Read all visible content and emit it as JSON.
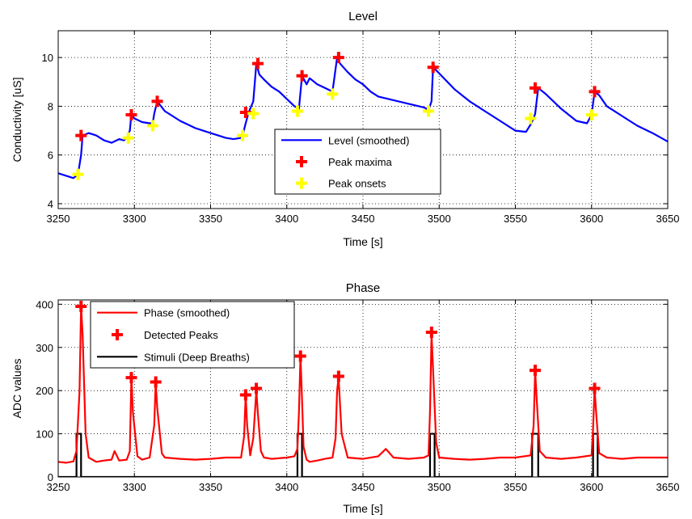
{
  "chart_data": [
    {
      "type": "line",
      "title": "Level",
      "xlabel": "Time [s]",
      "ylabel": "Conductivity [uS]",
      "xlim": [
        3250,
        3650
      ],
      "ylim": [
        3.8,
        11.1
      ],
      "xticks": [
        3250,
        3300,
        3350,
        3400,
        3450,
        3500,
        3550,
        3600,
        3650
      ],
      "yticks": [
        4,
        6,
        8,
        10
      ],
      "grid": true,
      "legend": {
        "placement": "center-right-bottom",
        "entries": [
          "Level (smoothed)",
          "Peak maxima",
          "Peak onsets"
        ]
      },
      "series": [
        {
          "name": "Level (smoothed)",
          "kind": "line",
          "color": "#0000ff",
          "x": [
            3250,
            3255,
            3260,
            3263,
            3265,
            3266,
            3270,
            3275,
            3280,
            3285,
            3290,
            3293,
            3295,
            3297,
            3298,
            3300,
            3305,
            3310,
            3312,
            3313,
            3315,
            3320,
            3325,
            3330,
            3340,
            3350,
            3360,
            3365,
            3370,
            3371,
            3373,
            3375,
            3378,
            3380,
            3382,
            3385,
            3390,
            3395,
            3400,
            3405,
            3408,
            3410,
            3413,
            3415,
            3418,
            3420,
            3425,
            3430,
            3433,
            3435,
            3440,
            3445,
            3450,
            3455,
            3460,
            3470,
            3480,
            3490,
            3493,
            3495,
            3496,
            3500,
            3510,
            3520,
            3530,
            3540,
            3550,
            3557,
            3560,
            3562,
            3563,
            3565,
            3570,
            3580,
            3590,
            3597,
            3600,
            3602,
            3605,
            3610,
            3620,
            3630,
            3640,
            3650
          ],
          "y": [
            5.25,
            5.15,
            5.05,
            5.2,
            6.0,
            6.8,
            6.9,
            6.8,
            6.6,
            6.5,
            6.65,
            6.6,
            6.7,
            7.0,
            7.65,
            7.5,
            7.35,
            7.3,
            7.3,
            7.7,
            8.2,
            7.8,
            7.6,
            7.4,
            7.1,
            6.9,
            6.7,
            6.65,
            6.7,
            6.8,
            7.3,
            7.75,
            8.2,
            9.75,
            9.3,
            9.1,
            8.8,
            8.6,
            8.3,
            8.0,
            7.9,
            9.25,
            8.9,
            9.15,
            9.0,
            8.9,
            8.75,
            8.6,
            10.0,
            9.75,
            9.4,
            9.1,
            8.9,
            8.6,
            8.4,
            8.25,
            8.1,
            7.95,
            7.85,
            8.2,
            9.6,
            9.35,
            8.7,
            8.2,
            7.8,
            7.4,
            7.0,
            6.95,
            7.25,
            7.5,
            7.7,
            8.75,
            8.5,
            7.9,
            7.4,
            7.3,
            7.65,
            8.6,
            8.45,
            8.0,
            7.6,
            7.2,
            6.9,
            6.55
          ]
        },
        {
          "name": "Peak maxima",
          "kind": "marker",
          "color": "#ff0000",
          "x": [
            3265,
            3298,
            3315,
            3373,
            3381,
            3410,
            3434,
            3496,
            3563,
            3602
          ],
          "y": [
            6.8,
            7.65,
            8.2,
            7.75,
            9.75,
            9.25,
            10.0,
            9.6,
            8.75,
            8.6
          ]
        },
        {
          "name": "Peak onsets",
          "kind": "marker",
          "color": "#ffff00",
          "x": [
            3263,
            3296,
            3312,
            3371,
            3378,
            3407,
            3430,
            3493,
            3560,
            3600
          ],
          "y": [
            5.2,
            6.7,
            7.2,
            6.8,
            7.7,
            7.8,
            8.5,
            7.8,
            7.5,
            7.65
          ]
        }
      ]
    },
    {
      "type": "line",
      "title": "Phase",
      "xlabel": "Time [s]",
      "ylabel": "ADC values",
      "xlim": [
        3250,
        3650
      ],
      "ylim": [
        0,
        410
      ],
      "xticks": [
        3250,
        3300,
        3350,
        3400,
        3450,
        3500,
        3550,
        3600,
        3650
      ],
      "yticks": [
        0,
        100,
        200,
        300,
        400
      ],
      "grid": true,
      "legend": {
        "placement": "top-left",
        "entries": [
          "Phase (smoothed)",
          "Detected Peaks",
          "Stimuli (Deep Breaths)"
        ]
      },
      "series": [
        {
          "name": "Phase (smoothed)",
          "kind": "line",
          "color": "#ff0000",
          "x": [
            3250,
            3255,
            3260,
            3262,
            3264,
            3265,
            3266,
            3268,
            3270,
            3275,
            3280,
            3285,
            3287,
            3290,
            3295,
            3297,
            3298,
            3299,
            3302,
            3305,
            3310,
            3313,
            3314,
            3315,
            3318,
            3320,
            3330,
            3340,
            3350,
            3360,
            3370,
            3372,
            3373,
            3374,
            3376,
            3378,
            3380,
            3381,
            3383,
            3385,
            3390,
            3400,
            3405,
            3407,
            3408,
            3409,
            3410,
            3411,
            3413,
            3415,
            3420,
            3425,
            3430,
            3432,
            3433,
            3434,
            3436,
            3440,
            3450,
            3460,
            3465,
            3470,
            3480,
            3490,
            3493,
            3494,
            3495,
            3496,
            3498,
            3500,
            3510,
            3520,
            3530,
            3540,
            3550,
            3560,
            3562,
            3563,
            3564,
            3566,
            3570,
            3580,
            3590,
            3600,
            3601,
            3602,
            3603,
            3605,
            3610,
            3620,
            3630,
            3640,
            3650
          ],
          "y": [
            35,
            33,
            36,
            60,
            200,
            395,
            330,
            100,
            45,
            35,
            38,
            40,
            60,
            38,
            40,
            60,
            230,
            150,
            48,
            40,
            45,
            120,
            220,
            160,
            55,
            45,
            42,
            40,
            42,
            45,
            45,
            95,
            190,
            120,
            50,
            90,
            200,
            150,
            60,
            45,
            42,
            45,
            48,
            65,
            150,
            280,
            180,
            70,
            40,
            35,
            38,
            42,
            45,
            90,
            200,
            230,
            100,
            45,
            42,
            48,
            65,
            45,
            42,
            45,
            50,
            150,
            330,
            250,
            80,
            45,
            42,
            40,
            42,
            45,
            45,
            50,
            120,
            245,
            180,
            60,
            45,
            42,
            45,
            50,
            110,
            205,
            150,
            55,
            45,
            42,
            45,
            45,
            45
          ]
        },
        {
          "name": "Detected Peaks",
          "kind": "marker",
          "color": "#ff0000",
          "x": [
            3265,
            3298,
            3314,
            3373,
            3380,
            3409,
            3434,
            3495,
            3563,
            3602
          ],
          "y": [
            395,
            230,
            220,
            190,
            205,
            280,
            233,
            335,
            247,
            205
          ]
        },
        {
          "name": "Stimuli (Deep Breaths)",
          "kind": "pulses",
          "color": "#000000",
          "pulses": [
            [
              3262,
              3265
            ],
            [
              3407,
              3410
            ],
            [
              3494,
              3497
            ],
            [
              3561,
              3565
            ],
            [
              3601,
              3604
            ]
          ],
          "level": 100
        }
      ]
    }
  ]
}
